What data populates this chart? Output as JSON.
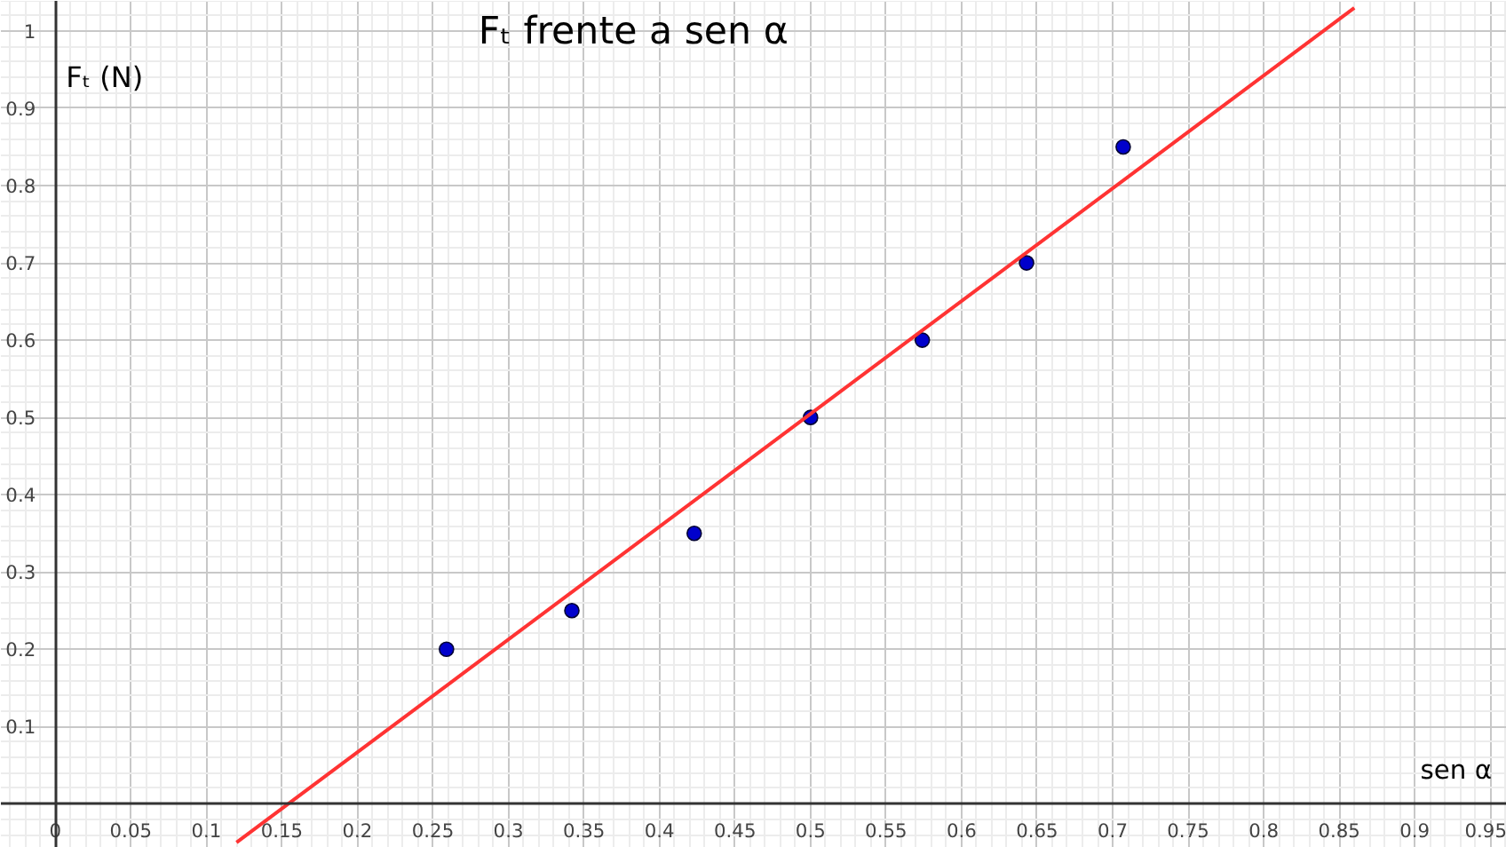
{
  "chart_data": {
    "type": "scatter",
    "title": "Fₜ frente a sen α",
    "xlabel": "sen α",
    "ylabel": "Fₜ (N)",
    "xlim": [
      -0.036,
      0.961
    ],
    "ylim": [
      -0.057,
      1.039
    ],
    "xticks": [
      0,
      0.05,
      0.1,
      0.15,
      0.2,
      0.25,
      0.3,
      0.35,
      0.4,
      0.45,
      0.5,
      0.55,
      0.6,
      0.65,
      0.7,
      0.75,
      0.8,
      0.85,
      0.9,
      0.95
    ],
    "yticks": [
      0.1,
      0.2,
      0.3,
      0.4,
      0.5,
      0.6,
      0.7,
      0.8,
      0.9,
      1
    ],
    "grid": true,
    "series": [
      {
        "marker": "circle",
        "color": "#0000cc",
        "x": [
          0.259,
          0.342,
          0.423,
          0.5,
          0.574,
          0.643,
          0.707
        ],
        "values": [
          0.2,
          0.25,
          0.35,
          0.5,
          0.6,
          0.7,
          0.85
        ]
      },
      {
        "type": "line",
        "marker": "none",
        "color": "#ff3333",
        "x": [
          0.12,
          0.86
        ],
        "values": [
          -0.05,
          1.03
        ]
      }
    ]
  }
}
